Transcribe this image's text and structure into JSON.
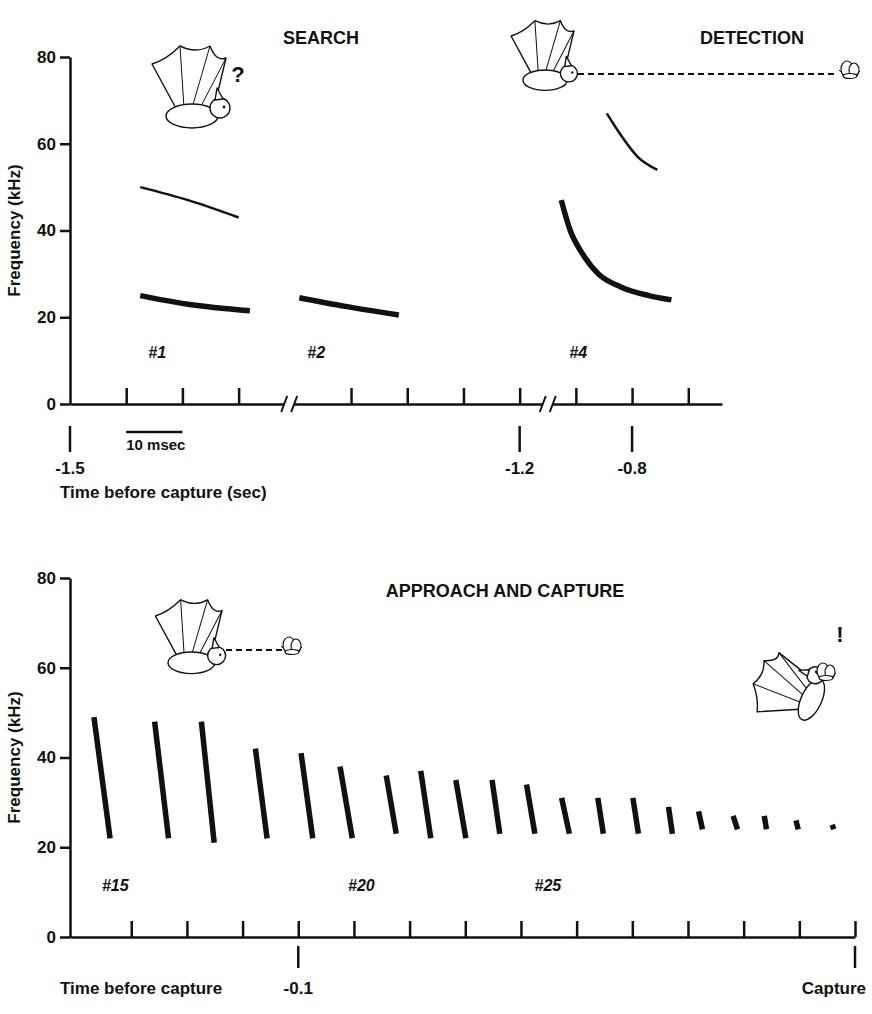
{
  "chart_data": [
    {
      "type": "spectrogram",
      "titles": [
        "SEARCH",
        "DETECTION"
      ],
      "annotations": [
        "?"
      ],
      "xlabel": "Time before capture (sec)",
      "ylabel": "Frequency (kHz)",
      "color": "#111111",
      "xlim": [
        -1,
        115
      ],
      "ylim": [
        0,
        80
      ],
      "xticks": [
        9,
        19,
        29,
        49,
        59,
        69,
        79,
        89,
        99,
        109
      ],
      "yticks": [
        0,
        20,
        40,
        60,
        80
      ],
      "tick_labels": "y",
      "breaks": [
        38,
        84
      ],
      "scale_bar": {
        "x": [
          9,
          19
        ],
        "label": "10 msec"
      },
      "time_marks": [
        {
          "value": -1,
          "label": "-1.5"
        },
        {
          "value": 79,
          "label": "-1.2"
        },
        {
          "value": 99,
          "label": "-0.8"
        }
      ],
      "calls": [
        {
          "label": "#1",
          "harmonics": [
            {
              "x": [
                11.5,
                20,
                31
              ],
              "values": [
                25,
                23,
                21.5
              ],
              "line_style": "thick"
            },
            {
              "x": [
                11.5,
                20,
                29
              ],
              "values": [
                50,
                47,
                43
              ],
              "line_style": "thin"
            }
          ]
        },
        {
          "label": "#2",
          "harmonics": [
            {
              "x": [
                39.8,
                48,
                57.5
              ],
              "values": [
                24.5,
                22.5,
                20.5
              ],
              "line_style": "thick"
            }
          ]
        },
        {
          "label": "#4",
          "harmonics": [
            {
              "x": [
                86.4,
                88,
                90,
                93,
                97,
                102,
                106
              ],
              "values": [
                47,
                40,
                35,
                30,
                27,
                25,
                24
              ],
              "line_style": "thick"
            },
            {
              "x": [
                94.5,
                97,
                100,
                103.5
              ],
              "values": [
                67,
                62,
                57,
                54
              ],
              "line_style": "thin"
            }
          ]
        }
      ]
    },
    {
      "type": "spectrogram",
      "title": "APPROACH AND CAPTURE",
      "annotations": [
        "!"
      ],
      "xlabel": "Time before capture",
      "ylabel": "Frequency (kHz)",
      "color": "#111111",
      "xlim": [
        -141,
        0
      ],
      "ylim": [
        0,
        80
      ],
      "xticks": [
        -130,
        -120,
        -110,
        -100,
        -90,
        -80,
        -70,
        -60,
        -50,
        -40,
        -30,
        -20,
        -10,
        0
      ],
      "yticks": [
        0,
        20,
        40,
        60,
        80
      ],
      "tick_labels": "y",
      "time_marks": [
        {
          "value": -100,
          "label": "-0.1"
        },
        {
          "value": 0,
          "label": "Capture"
        }
      ],
      "calls": [
        {
          "label": "#15",
          "harmonics": [
            {
              "x": [
                -136.7,
                -133.8
              ],
              "values": [
                49,
                22
              ],
              "line_style": "thick"
            }
          ]
        },
        {
          "label": null,
          "harmonics": [
            {
              "x": [
                -125.8,
                -123.3
              ],
              "values": [
                48,
                22
              ],
              "line_style": "thick"
            }
          ]
        },
        {
          "label": null,
          "harmonics": [
            {
              "x": [
                -117.4,
                -115.1
              ],
              "values": [
                48,
                21
              ],
              "line_style": "thick"
            }
          ]
        },
        {
          "label": null,
          "harmonics": [
            {
              "x": [
                -107.7,
                -105.6
              ],
              "values": [
                42,
                22
              ],
              "line_style": "thick"
            }
          ]
        },
        {
          "label": null,
          "harmonics": [
            {
              "x": [
                -99.5,
                -97.4
              ],
              "values": [
                41,
                22
              ],
              "line_style": "thick"
            }
          ]
        },
        {
          "label": "#20",
          "harmonics": [
            {
              "x": [
                -92.5,
                -90.3
              ],
              "values": [
                38,
                22
              ],
              "line_style": "thick"
            }
          ]
        },
        {
          "label": null,
          "harmonics": [
            {
              "x": [
                -84.2,
                -82.4
              ],
              "values": [
                36,
                23
              ],
              "line_style": "thick"
            }
          ]
        },
        {
          "label": null,
          "harmonics": [
            {
              "x": [
                -78.0,
                -76.2
              ],
              "values": [
                37,
                22
              ],
              "line_style": "thick"
            }
          ]
        },
        {
          "label": null,
          "harmonics": [
            {
              "x": [
                -71.7,
                -69.9
              ],
              "values": [
                35,
                22
              ],
              "line_style": "thick"
            }
          ]
        },
        {
          "label": null,
          "harmonics": [
            {
              "x": [
                -65.2,
                -63.8
              ],
              "values": [
                35,
                23
              ],
              "line_style": "thick"
            }
          ]
        },
        {
          "label": "#25",
          "harmonics": [
            {
              "x": [
                -59.0,
                -57.5
              ],
              "values": [
                34,
                23
              ],
              "line_style": "thick"
            }
          ]
        },
        {
          "label": null,
          "harmonics": [
            {
              "x": [
                -52.7,
                -51.3
              ],
              "values": [
                31,
                23
              ],
              "line_style": "thick"
            }
          ]
        },
        {
          "label": null,
          "harmonics": [
            {
              "x": [
                -46.2,
                -45.2
              ],
              "values": [
                31,
                23
              ],
              "line_style": "thick"
            }
          ]
        },
        {
          "label": null,
          "harmonics": [
            {
              "x": [
                -39.9,
                -38.9
              ],
              "values": [
                31,
                23
              ],
              "line_style": "thick"
            }
          ]
        },
        {
          "label": null,
          "harmonics": [
            {
              "x": [
                -33.5,
                -32.8
              ],
              "values": [
                29,
                23
              ],
              "line_style": "thick"
            }
          ]
        },
        {
          "label": null,
          "harmonics": [
            {
              "x": [
                -28.1,
                -27.4
              ],
              "values": [
                28,
                24
              ],
              "line_style": "thick"
            }
          ]
        },
        {
          "label": null,
          "harmonics": [
            {
              "x": [
                -21.9,
                -21.1
              ],
              "values": [
                27,
                24
              ],
              "line_style": "thick"
            }
          ]
        },
        {
          "label": null,
          "harmonics": [
            {
              "x": [
                -16.3,
                -15.9
              ],
              "values": [
                27,
                24
              ],
              "line_style": "thick"
            }
          ]
        },
        {
          "label": null,
          "harmonics": [
            {
              "x": [
                -10.6,
                -10.2
              ],
              "values": [
                26,
                24
              ],
              "line_style": "thick"
            }
          ]
        },
        {
          "label": null,
          "harmonics": [
            {
              "x": [
                -4.1,
                -3.8
              ],
              "values": [
                25,
                24
              ],
              "line_style": "thick"
            }
          ]
        }
      ]
    }
  ]
}
